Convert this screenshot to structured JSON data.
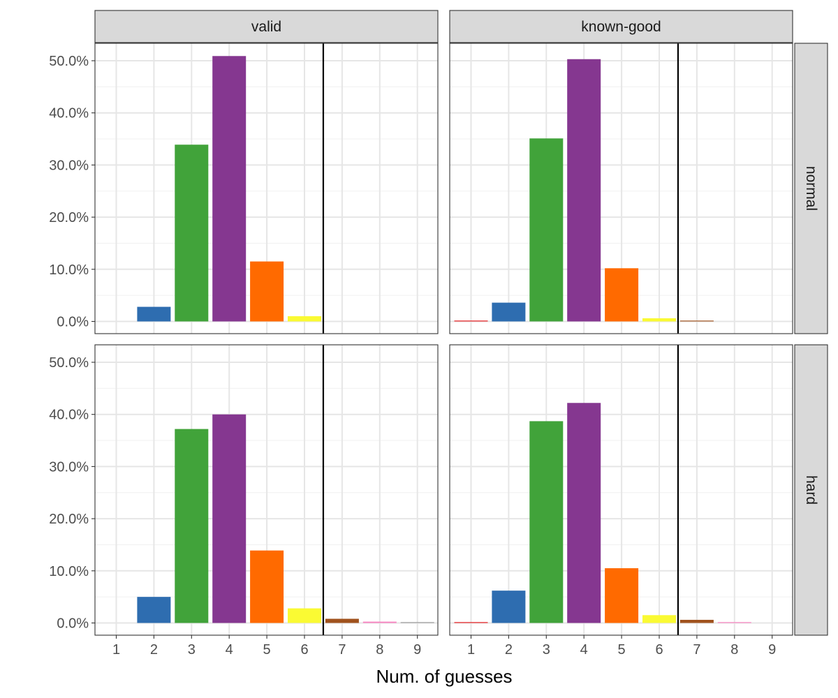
{
  "chart_data": {
    "type": "bar",
    "xlabel": "Num. of guesses",
    "ylabel": "",
    "categories": [
      "1",
      "2",
      "3",
      "4",
      "5",
      "6",
      "7",
      "8",
      "9"
    ],
    "ylim": [
      0,
      53
    ],
    "y_ticks": [
      0,
      10,
      20,
      30,
      40,
      50
    ],
    "y_tick_labels": [
      "0.0%",
      "10.0%",
      "20.0%",
      "30.0%",
      "40.0%",
      "50.0%"
    ],
    "reference_line_x": 6.5,
    "bar_colors": [
      "#E41A1C",
      "#2E6DB0",
      "#41A33A",
      "#853790",
      "#FF6A00",
      "#FAFA33",
      "#A0521D",
      "#F781BF",
      "#999999"
    ],
    "column_labels": [
      "valid",
      "known-good"
    ],
    "row_labels": [
      "normal",
      "hard"
    ],
    "panels": [
      {
        "column": "valid",
        "row": "normal",
        "values": [
          0.0,
          2.8,
          33.9,
          50.9,
          11.5,
          1.0,
          0.0,
          0.0,
          0.0
        ]
      },
      {
        "column": "known-good",
        "row": "normal",
        "values": [
          0.15,
          3.6,
          35.1,
          50.3,
          10.2,
          0.6,
          0.05,
          0.0,
          0.0
        ]
      },
      {
        "column": "valid",
        "row": "hard",
        "values": [
          0.0,
          5.0,
          37.2,
          40.0,
          13.9,
          2.8,
          0.8,
          0.25,
          0.1
        ]
      },
      {
        "column": "known-good",
        "row": "hard",
        "values": [
          0.1,
          6.2,
          38.7,
          42.2,
          10.5,
          1.5,
          0.6,
          0.1,
          0.0
        ]
      }
    ]
  }
}
